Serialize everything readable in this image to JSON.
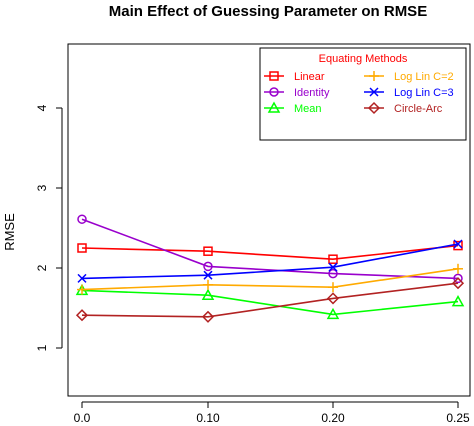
{
  "chart_data": {
    "type": "line",
    "title": "Main Effect of Guessing Parameter on RMSE",
    "xlabel": "",
    "ylabel": "RMSE",
    "categories": [
      "0.0",
      "0.10",
      "0.20",
      "0.25"
    ],
    "y_ticks": [
      "1",
      "2",
      "3",
      "4"
    ],
    "ylim": [
      0.4,
      4.8
    ],
    "grid": false,
    "legend": {
      "title": "Equating Methods",
      "title_color": "#ff0000",
      "placement": "top-right"
    },
    "series": [
      {
        "name": "Linear",
        "color": "#ff0000",
        "marker": "square",
        "values": [
          2.25,
          2.21,
          2.11,
          2.28
        ]
      },
      {
        "name": "Identity",
        "color": "#9900cc",
        "marker": "circle",
        "values": [
          2.61,
          2.02,
          1.93,
          1.87
        ]
      },
      {
        "name": "Mean",
        "color": "#00ff00",
        "marker": "triangle",
        "values": [
          1.72,
          1.66,
          1.42,
          1.58
        ]
      },
      {
        "name": "Log Lin C=2",
        "color": "#ffaa00",
        "marker": "plus",
        "values": [
          1.73,
          1.79,
          1.76,
          1.99
        ]
      },
      {
        "name": "Log Lin C=3",
        "color": "#0000ff",
        "marker": "cross",
        "values": [
          1.87,
          1.91,
          2.01,
          2.3
        ]
      },
      {
        "name": "Circle-Arc",
        "color": "#b22222",
        "marker": "diamond",
        "values": [
          1.41,
          1.39,
          1.62,
          1.81
        ]
      }
    ]
  }
}
